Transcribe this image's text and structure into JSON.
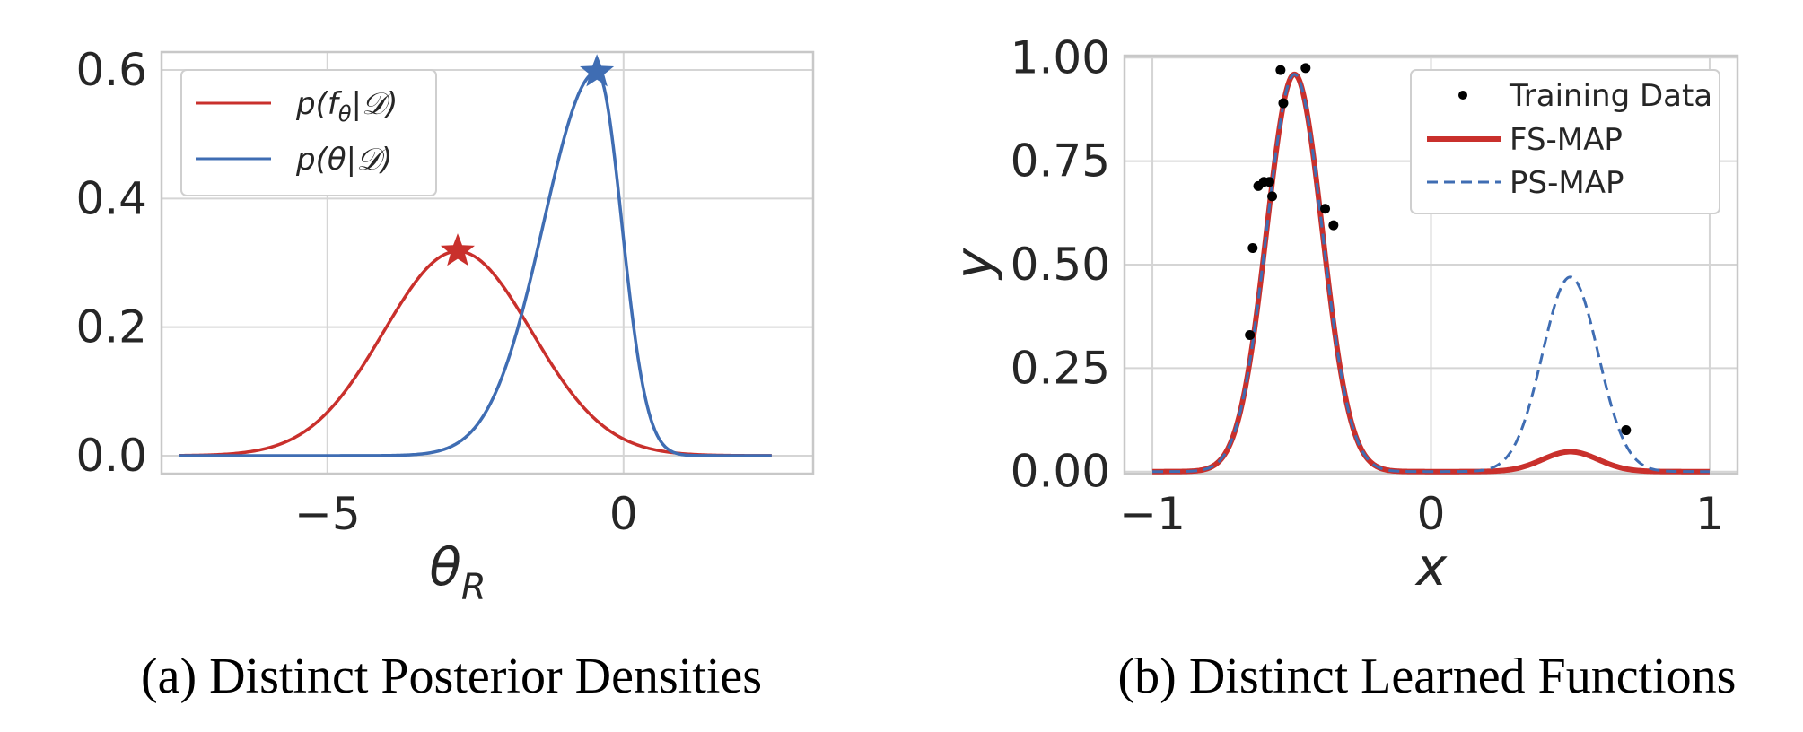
{
  "colors": {
    "red": "#c9302c",
    "blue": "#3f6db3",
    "black": "#000000"
  },
  "chart_data": [
    {
      "type": "line",
      "panel": "a",
      "caption": "(a) Distinct Posterior Densities",
      "xlabel": "θ",
      "xlabel_sub": "R",
      "ylabel": "",
      "xlim": [
        -7.8,
        3.2
      ],
      "ylim": [
        -0.028,
        0.628
      ],
      "xticks": [
        -5,
        0
      ],
      "xtick_labels": [
        "−5",
        "0"
      ],
      "yticks": [
        0.0,
        0.2,
        0.4,
        0.6
      ],
      "ytick_labels": [
        "0.0",
        "0.2",
        "0.4",
        "0.6"
      ],
      "x_range": [
        -7.5,
        2.5
      ],
      "legend": {
        "position": "top-left",
        "entries": [
          "p(f_θ|D)",
          "p(θ|D)"
        ]
      },
      "series": [
        {
          "name": "p(f_θ|D)",
          "legend_main": "p(f",
          "legend_sub": "θ",
          "legend_tail": "|𝒟)",
          "color": "red",
          "kind": "gaussian",
          "mu": -2.8,
          "sigma": 1.25,
          "peak": 0.318,
          "star": [
            -2.8,
            0.318
          ]
        },
        {
          "name": "p(θ|D)",
          "legend_main": "p(θ|𝒟)",
          "color": "blue",
          "kind": "skewed",
          "mu": -0.45,
          "sigma_left": 0.9,
          "sigma_right": 0.42,
          "peak": 0.597,
          "star": [
            -0.45,
            0.597
          ]
        }
      ]
    },
    {
      "type": "line",
      "panel": "b",
      "caption": "(b) Distinct Learned Functions",
      "xlabel": "x",
      "ylabel": "y",
      "xlim": [
        -1.1,
        1.1
      ],
      "ylim": [
        -0.005,
        1.005
      ],
      "xticks": [
        -1,
        0,
        1
      ],
      "xtick_labels": [
        "−1",
        "0",
        "1"
      ],
      "yticks": [
        0.0,
        0.25,
        0.5,
        0.75,
        1.0
      ],
      "ytick_labels": [
        "0.00",
        "0.25",
        "0.50",
        "0.75",
        "1.00"
      ],
      "legend": {
        "position": "top-right",
        "entries": [
          "Training Data",
          "FS-MAP",
          "PS-MAP"
        ]
      },
      "scatter": {
        "name": "Training Data",
        "x": [
          -0.65,
          -0.64,
          -0.62,
          -0.6,
          -0.58,
          -0.57,
          -0.54,
          -0.53,
          -0.45,
          -0.38,
          -0.35,
          0.7
        ],
        "y": [
          0.33,
          0.54,
          0.69,
          0.7,
          0.7,
          0.665,
          0.97,
          0.89,
          0.975,
          0.635,
          0.595,
          0.1
        ]
      },
      "series": [
        {
          "name": "FS-MAP",
          "color": "red",
          "style": "solid",
          "x_range": [
            -1.0,
            1.0
          ],
          "bumps": [
            {
              "mu": -0.49,
              "sigma": 0.1,
              "amp": 0.96
            },
            {
              "mu": 0.5,
              "sigma": 0.1,
              "amp": 0.048
            }
          ]
        },
        {
          "name": "PS-MAP",
          "color": "blue",
          "style": "dashed",
          "x_range": [
            -1.0,
            1.0
          ],
          "bumps": [
            {
              "mu": -0.49,
              "sigma": 0.1,
              "amp": 0.96
            },
            {
              "mu": 0.5,
              "sigma": 0.1,
              "amp": 0.47
            }
          ]
        }
      ]
    }
  ]
}
